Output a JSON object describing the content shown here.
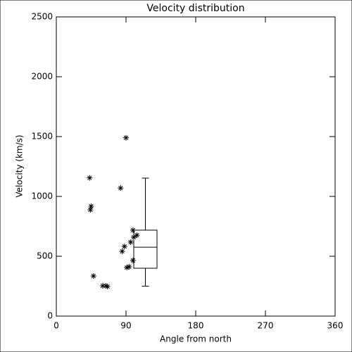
{
  "chart_data": {
    "type": "scatter",
    "title": "Velocity distribution",
    "xlabel": "Angle from north",
    "ylabel": "Velocity (km/s)",
    "xlim": [
      0,
      360
    ],
    "ylim": [
      0,
      2500
    ],
    "xticks": [
      0,
      90,
      180,
      270,
      360
    ],
    "yticks": [
      0,
      500,
      1000,
      1500,
      2000,
      2500
    ],
    "marker": "asterisk",
    "color": "#000000",
    "x": [
      90,
      43,
      83,
      45,
      44,
      99,
      104,
      100,
      96,
      88,
      85,
      99,
      94,
      91,
      48,
      60,
      64,
      66
    ],
    "y": [
      1490,
      1155,
      1070,
      918,
      888,
      718,
      676,
      659,
      618,
      582,
      541,
      465,
      412,
      406,
      335,
      253,
      253,
      247
    ],
    "box": {
      "x": 115,
      "width": 30,
      "min": 250,
      "q1": 400,
      "median": 576,
      "q3": 718,
      "max": 1153
    }
  }
}
